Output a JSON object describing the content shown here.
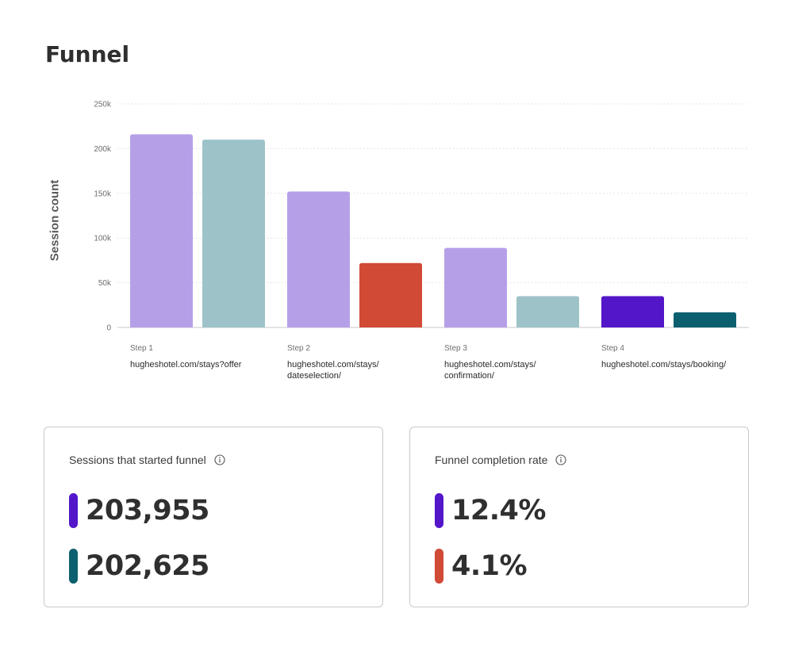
{
  "page": {
    "title": "Funnel"
  },
  "chart_data": {
    "type": "bar",
    "ylabel": "Session count",
    "ylim": [
      0,
      250000
    ],
    "yticks": [
      0,
      50000,
      100000,
      150000,
      200000,
      250000
    ],
    "ytick_labels": [
      "0",
      "50k",
      "100k",
      "150k",
      "200k",
      "250k"
    ],
    "grid": true,
    "categories": [
      {
        "step": "Step 1",
        "url": "hugheshotel.com/stays?offer"
      },
      {
        "step": "Step 2",
        "url": "hugheshotel.com/stays/ dateselection/"
      },
      {
        "step": "Step 3",
        "url": "hugheshotel.com/stays/ confirmation/"
      },
      {
        "step": "Step 4",
        "url": "hugheshotel.com/stays/booking/"
      }
    ],
    "bars": [
      [
        {
          "value": 216000,
          "color": "#b5a0e8"
        },
        {
          "value": 210000,
          "color": "#9dc3c9"
        }
      ],
      [
        {
          "value": 152000,
          "color": "#b5a0e8"
        },
        {
          "value": 72000,
          "color": "#d04a35"
        }
      ],
      [
        {
          "value": 89000,
          "color": "#b5a0e8"
        },
        {
          "value": 35000,
          "color": "#9dc3c9"
        }
      ],
      [
        {
          "value": 35000,
          "color": "#5316c9"
        },
        {
          "value": 17000,
          "color": "#0c5f6e"
        }
      ]
    ]
  },
  "cards": [
    {
      "title": "Sessions that started funnel",
      "icon": "info-icon",
      "metrics": [
        {
          "value": "203,955",
          "color": "#5316c9"
        },
        {
          "value": "202,625",
          "color": "#0c5f6e"
        }
      ]
    },
    {
      "title": "Funnel completion rate",
      "icon": "info-icon",
      "metrics": [
        {
          "value": "12.4%",
          "color": "#5316c9"
        },
        {
          "value": "4.1%",
          "color": "#d04a35"
        }
      ]
    }
  ]
}
